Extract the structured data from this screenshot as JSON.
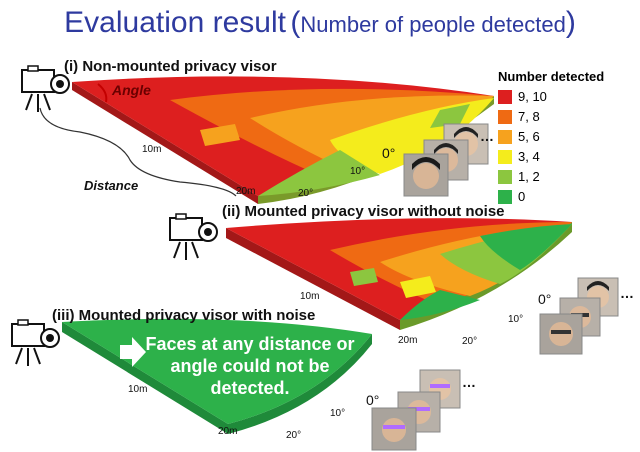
{
  "title": {
    "main": "Evaluation result",
    "open_paren": "(",
    "sub": "Number of people detected",
    "close_paren": ")"
  },
  "sections": {
    "s1": "(i) Non-mounted privacy visor",
    "s2": "(ii) Mounted privacy visor without noise",
    "s3": "(iii) Mounted privacy visor with noise"
  },
  "annotations": {
    "angle": "Angle",
    "distance": "Distance",
    "d10": "10m",
    "d20": "20m",
    "a0": "0°",
    "a10": "10°",
    "a20": "20°",
    "message": "Faces at any distance or angle could not be detected.",
    "ellipsis": "…"
  },
  "legend": {
    "title": "Number detected",
    "items": [
      {
        "label": "9, 10",
        "color": "#dd1f1f"
      },
      {
        "label": "7, 8",
        "color": "#ef6a13"
      },
      {
        "label": "5, 6",
        "color": "#f6a21e"
      },
      {
        "label": "3, 4",
        "color": "#f4ec1c"
      },
      {
        "label": "1, 2",
        "color": "#8cc63f"
      },
      {
        "label": "0",
        "color": "#2db14a"
      }
    ]
  }
}
